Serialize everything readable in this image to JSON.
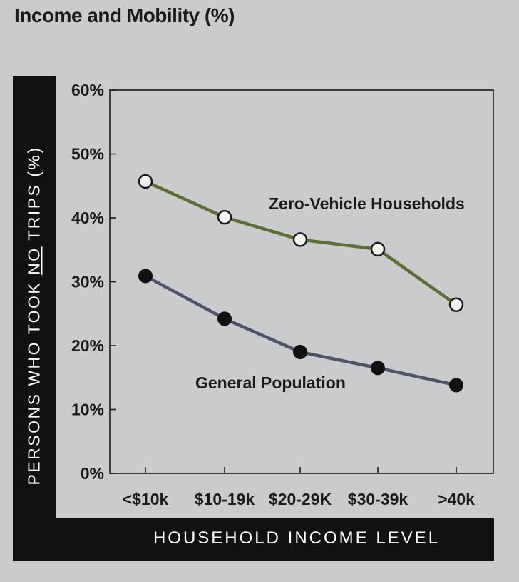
{
  "chart_data": {
    "type": "line",
    "title": "Income and Mobility (%)",
    "xlabel": "HOUSEHOLD INCOME LEVEL",
    "ylabel_parts": [
      "PERSONS WHO TOOK ",
      "NO",
      " TRIPS (%)"
    ],
    "categories": [
      "<$10k",
      "$10-19k",
      "$20-29K",
      "$30-39k",
      ">40k"
    ],
    "ylim": [
      0,
      60
    ],
    "yticks": [
      0,
      10,
      20,
      30,
      40,
      50,
      60
    ],
    "ytick_labels": [
      "0%",
      "10%",
      "20%",
      "30%",
      "40%",
      "50%",
      "60%"
    ],
    "grid": false,
    "series": [
      {
        "name": "Zero-Vehicle Households",
        "values": [
          45.7,
          40.1,
          36.6,
          35.1,
          26.4
        ],
        "line_color": "#5c6e35",
        "marker": "hollow-circle",
        "marker_fill": "#f3f3ef"
      },
      {
        "name": "General Population",
        "values": [
          30.9,
          24.2,
          19.0,
          16.5,
          13.8
        ],
        "line_color": "#4c5466",
        "marker": "filled-circle",
        "marker_fill": "#111111"
      }
    ]
  }
}
